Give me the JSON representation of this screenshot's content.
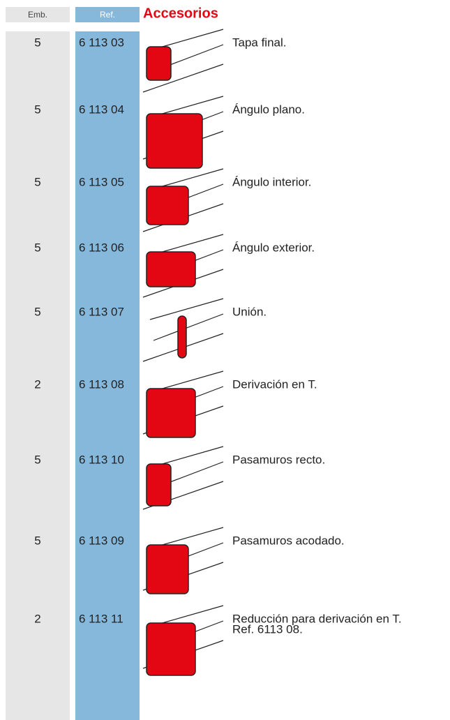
{
  "header": {
    "emb": "Emb.",
    "ref": "Ref.",
    "title": "Accesorios"
  },
  "rows": [
    {
      "emb": "5",
      "ref": "6 113 03",
      "description": [
        "Tapa final."
      ]
    },
    {
      "emb": "5",
      "ref": "6 113 04",
      "description": [
        "Ángulo plano."
      ]
    },
    {
      "emb": "5",
      "ref": "6 113 05",
      "description": [
        "Ángulo interior."
      ]
    },
    {
      "emb": "5",
      "ref": "6 113 06",
      "description": [
        "Ángulo exterior."
      ]
    },
    {
      "emb": "5",
      "ref": "6 113 07",
      "description": [
        "Unión."
      ]
    },
    {
      "emb": "2",
      "ref": "6 113 08",
      "description": [
        "Derivación en T."
      ]
    },
    {
      "emb": "5",
      "ref": "6 113 10",
      "description": [
        "Pasamuros recto."
      ]
    },
    {
      "emb": "5",
      "ref": "6 113 09",
      "description": [
        "Pasamuros acodado."
      ]
    },
    {
      "emb": "2",
      "ref": "6 113 11",
      "description": [
        "Reducción para derivación en T.",
        "Ref. 6113 08."
      ]
    }
  ]
}
